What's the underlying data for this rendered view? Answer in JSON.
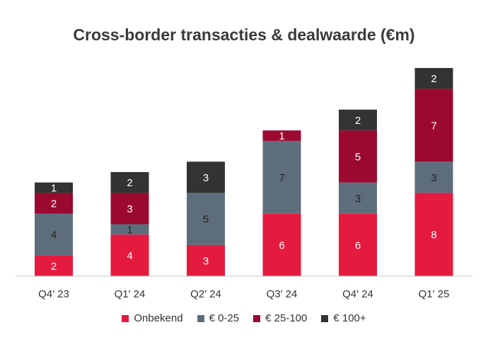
{
  "chart_data": {
    "type": "bar",
    "stacked": true,
    "title": "Cross-border transacties & dealwaarde (€m)",
    "xlabel": "",
    "ylabel": "",
    "ylim": [
      0,
      20
    ],
    "grid": false,
    "legend_position": "bottom",
    "categories": [
      "Q4' 23",
      "Q1' 24",
      "Q2' 24",
      "Q3' 24",
      "Q4' 24",
      "Q1' 25"
    ],
    "series": [
      {
        "name": "Onbekend",
        "color": "#e51a3f",
        "values": [
          2,
          4,
          3,
          6,
          6,
          8
        ]
      },
      {
        "name": "€ 0-25",
        "color": "#5e6d7c",
        "values": [
          4,
          1,
          5,
          7,
          3,
          3
        ]
      },
      {
        "name": "€ 25-100",
        "color": "#9b0830",
        "values": [
          2,
          3,
          0,
          1,
          5,
          7
        ]
      },
      {
        "name": "€ 100+",
        "color": "#333333",
        "values": [
          1,
          2,
          3,
          0,
          2,
          2
        ]
      }
    ]
  }
}
